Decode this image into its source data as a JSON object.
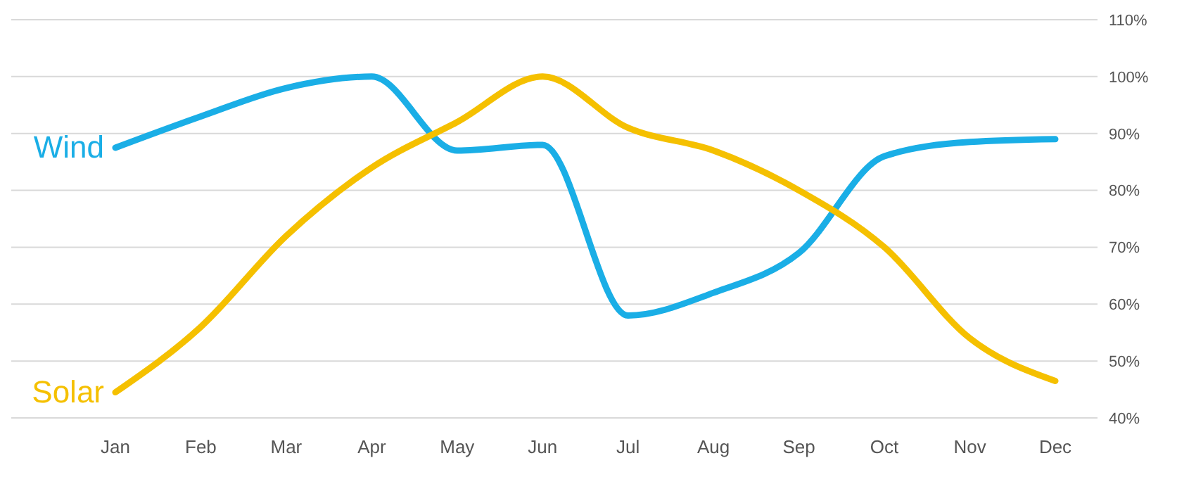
{
  "chart_data": {
    "type": "line",
    "categories": [
      "Jan",
      "Feb",
      "Mar",
      "Apr",
      "May",
      "Jun",
      "Jul",
      "Aug",
      "Sep",
      "Oct",
      "Nov",
      "Dec"
    ],
    "series": [
      {
        "name": "Wind",
        "color": "#1aaee6",
        "values": [
          87.5,
          93,
          98,
          100,
          87,
          88,
          58,
          62,
          69,
          86,
          88.5,
          89
        ]
      },
      {
        "name": "Solar",
        "color": "#f5c000",
        "values": [
          44.5,
          56,
          72,
          84,
          92,
          100,
          91,
          87,
          80,
          70,
          54,
          46.5
        ]
      }
    ],
    "ylim": [
      40,
      110
    ],
    "yticks": [
      {
        "value": 40,
        "label": "40%"
      },
      {
        "value": 50,
        "label": "50%"
      },
      {
        "value": 60,
        "label": "60%"
      },
      {
        "value": 70,
        "label": "70%"
      },
      {
        "value": 80,
        "label": "80%"
      },
      {
        "value": 90,
        "label": "90%"
      },
      {
        "value": 100,
        "label": "100%"
      },
      {
        "value": 110,
        "label": "110%"
      }
    ],
    "grid": "y",
    "marker": "none",
    "line_style": "solid"
  }
}
